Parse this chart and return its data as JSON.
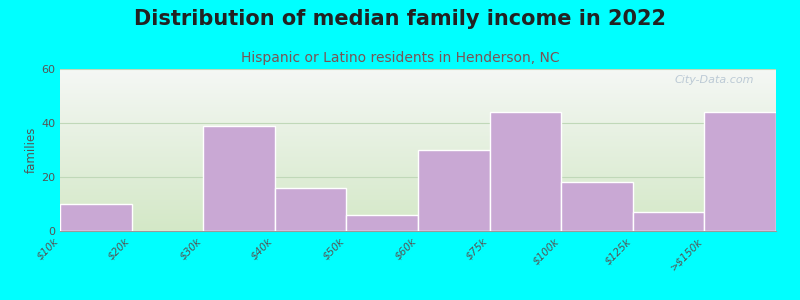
{
  "title": "Distribution of median family income in 2022",
  "subtitle": "Hispanic or Latino residents in Henderson, NC",
  "categories": [
    "$10k",
    "$20k",
    "$30k",
    "$40k",
    "$50k",
    "$60k",
    "$75k",
    "$100k",
    "$125k",
    ">$150k"
  ],
  "values": [
    10,
    0,
    39,
    16,
    6,
    30,
    44,
    18,
    7,
    44
  ],
  "bar_color": "#c9a8d4",
  "bar_edgecolor": "#ffffff",
  "background_color": "#00ffff",
  "plot_bg_top": "#f2f2f0",
  "plot_bg_bottom": "#d4e8cc",
  "ylabel": "families",
  "ylim": [
    0,
    60
  ],
  "yticks": [
    0,
    20,
    40,
    60
  ],
  "grid_color": "#c0d8b8",
  "title_fontsize": 15,
  "subtitle_fontsize": 10,
  "subtitle_color": "#7a5555",
  "watermark_text": "City-Data.com",
  "title_fontweight": "bold",
  "title_color": "#222222"
}
